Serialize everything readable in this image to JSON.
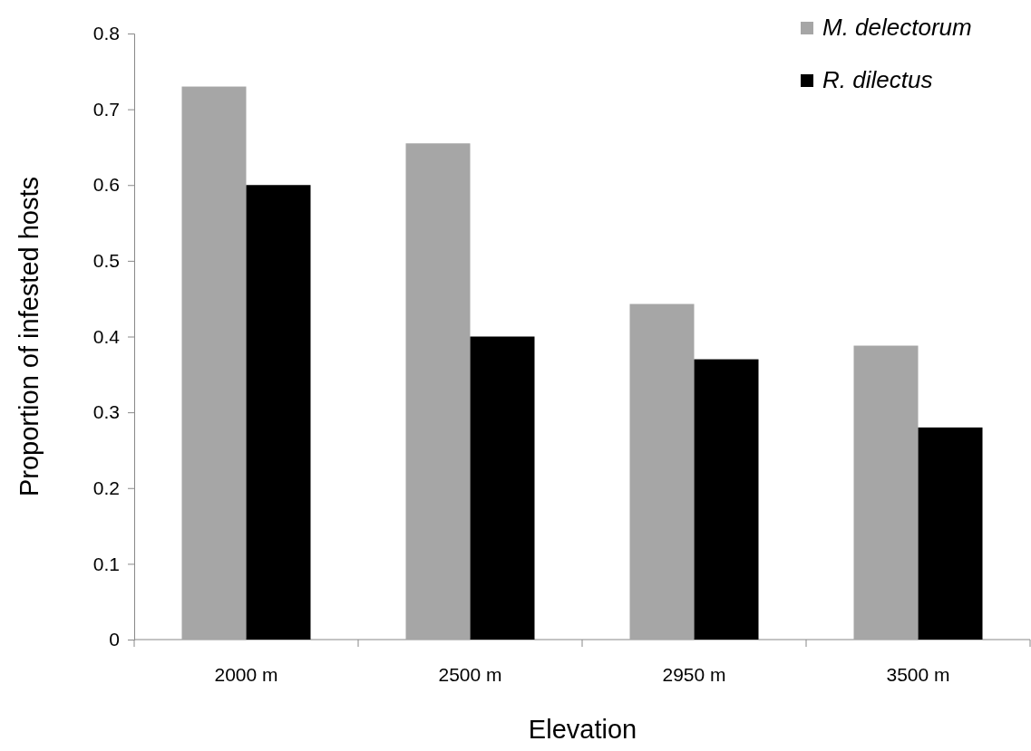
{
  "chart_data": {
    "type": "bar",
    "xlabel": "Elevation",
    "ylabel": "Proportion of infested hosts",
    "categories": [
      "2000 m",
      "2500 m",
      "2950 m",
      "3500 m"
    ],
    "series": [
      {
        "name": "M. delectorum",
        "color": "#a6a6a6",
        "values": [
          0.73,
          0.655,
          0.443,
          0.388
        ]
      },
      {
        "name": "R. dilectus",
        "color": "#000000",
        "values": [
          0.6,
          0.4,
          0.37,
          0.28
        ]
      }
    ],
    "ylim": [
      0,
      0.8
    ],
    "yticks": [
      0,
      0.1,
      0.2,
      0.3,
      0.4,
      0.5,
      0.6,
      0.7,
      0.8
    ],
    "grid": false,
    "legend": "top right"
  }
}
